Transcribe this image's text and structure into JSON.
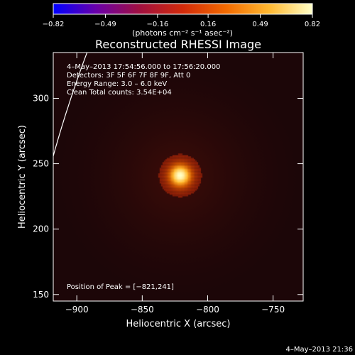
{
  "chart_data": {
    "type": "heatmap",
    "title": "Reconstructed RHESSI Image",
    "xlabel": "Heliocentric X (arcsec)",
    "ylabel": "Heliocentric Y (arcsec)",
    "xlim": [
      -918,
      -727
    ],
    "ylim": [
      145,
      335
    ],
    "x_ticks": [
      -900,
      -850,
      -800,
      -750
    ],
    "y_ticks": [
      150,
      200,
      250,
      300
    ],
    "x_tick_labels": [
      "−900",
      "−850",
      "−800",
      "−750"
    ],
    "y_tick_labels": [
      "150",
      "200",
      "250",
      "300"
    ],
    "colorbar": {
      "min": -0.82,
      "max": 0.82,
      "tick_values": [
        -0.82,
        -0.49,
        -0.16,
        0.16,
        0.49,
        0.82
      ],
      "tick_labels": [
        "−0.82",
        "−0.49",
        "−0.16",
        "0.16",
        "0.49",
        "0.82"
      ],
      "unit_label": "(photons cm⁻² s⁻¹ asec⁻²)",
      "colormap": [
        "#0000ff",
        "#6a00a8",
        "#a01040",
        "#d22a0a",
        "#f26a00",
        "#ffb830",
        "#ffffc8"
      ]
    },
    "source": {
      "x": -821,
      "y": 241,
      "peak_value": 0.82,
      "sigma_arcsec": 6.0
    },
    "limb_arc": {
      "center_x": 0,
      "center_y": 0,
      "radius_arcsec": 953,
      "color": "#ffffff"
    },
    "annotations": [
      "4–May–2013 17:54:56.000  to 17:56:20.000",
      "Detectors: 3F 5F 6F 7F 8F 9F, Att 0",
      "Energy Range: 3.0 – 6.0 keV",
      "Clean     Total counts: 3.54E+04"
    ],
    "peak_label": "Position of Peak = [−821,241]",
    "timestamp": "4–May–2013 21:36"
  }
}
